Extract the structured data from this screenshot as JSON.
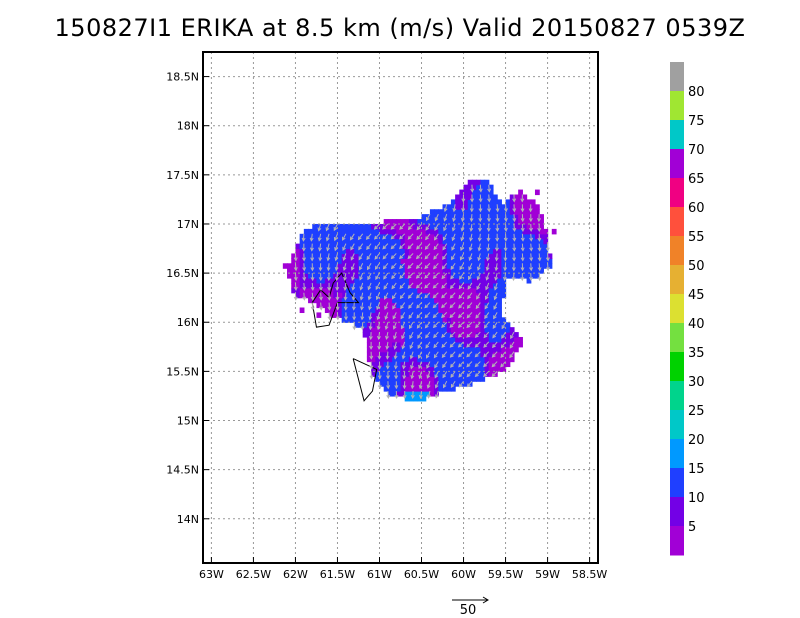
{
  "chart_data": {
    "type": "heatmap",
    "title": "150827I1 ERIKA at 8.5 km (m/s) Valid 20150827 0539Z",
    "x_ticks": [
      "63W",
      "62.5W",
      "62W",
      "61.5W",
      "61W",
      "60.5W",
      "60W",
      "59.5W",
      "59W",
      "58.5W"
    ],
    "x_tick_values": [
      -63,
      -62.5,
      -62,
      -61.5,
      -61,
      -60.5,
      -60,
      -59.5,
      -59,
      -58.5
    ],
    "y_ticks": [
      "18.5N",
      "18N",
      "17.5N",
      "17N",
      "16.5N",
      "16N",
      "15.5N",
      "15N",
      "14.5N",
      "14N"
    ],
    "y_tick_values": [
      18.5,
      18,
      17.5,
      17,
      16.5,
      16,
      15.5,
      15,
      14.5,
      14
    ],
    "xlim": [
      -63.1,
      -58.4
    ],
    "ylim": [
      13.55,
      18.75
    ],
    "grid": true,
    "grid_style": "dotted",
    "colorbar": {
      "labels": [
        "5",
        "10",
        "15",
        "20",
        "25",
        "30",
        "35",
        "40",
        "45",
        "50",
        "55",
        "60",
        "65",
        "70",
        "75",
        "80"
      ],
      "colors": [
        "#a100d6",
        "#7300e6",
        "#1f3fff",
        "#0099ff",
        "#00c8c8",
        "#00d48c",
        "#00d200",
        "#74e040",
        "#dce031",
        "#e6b032",
        "#f08228",
        "#ff503c",
        "#f00082",
        "#a100d6",
        "#00c8c8",
        "#a0e632",
        "#a0a0a0"
      ]
    },
    "reference_vector": {
      "label": "50",
      "speed": 50
    },
    "wind_field": {
      "description_units": "m/s",
      "dominant_range": [
        0,
        15
      ],
      "vector_direction": "from north-northeast",
      "core_center": [
        -60.6,
        16.2
      ]
    },
    "island_outlines": [
      "Guadeloupe",
      "Dominica"
    ]
  }
}
